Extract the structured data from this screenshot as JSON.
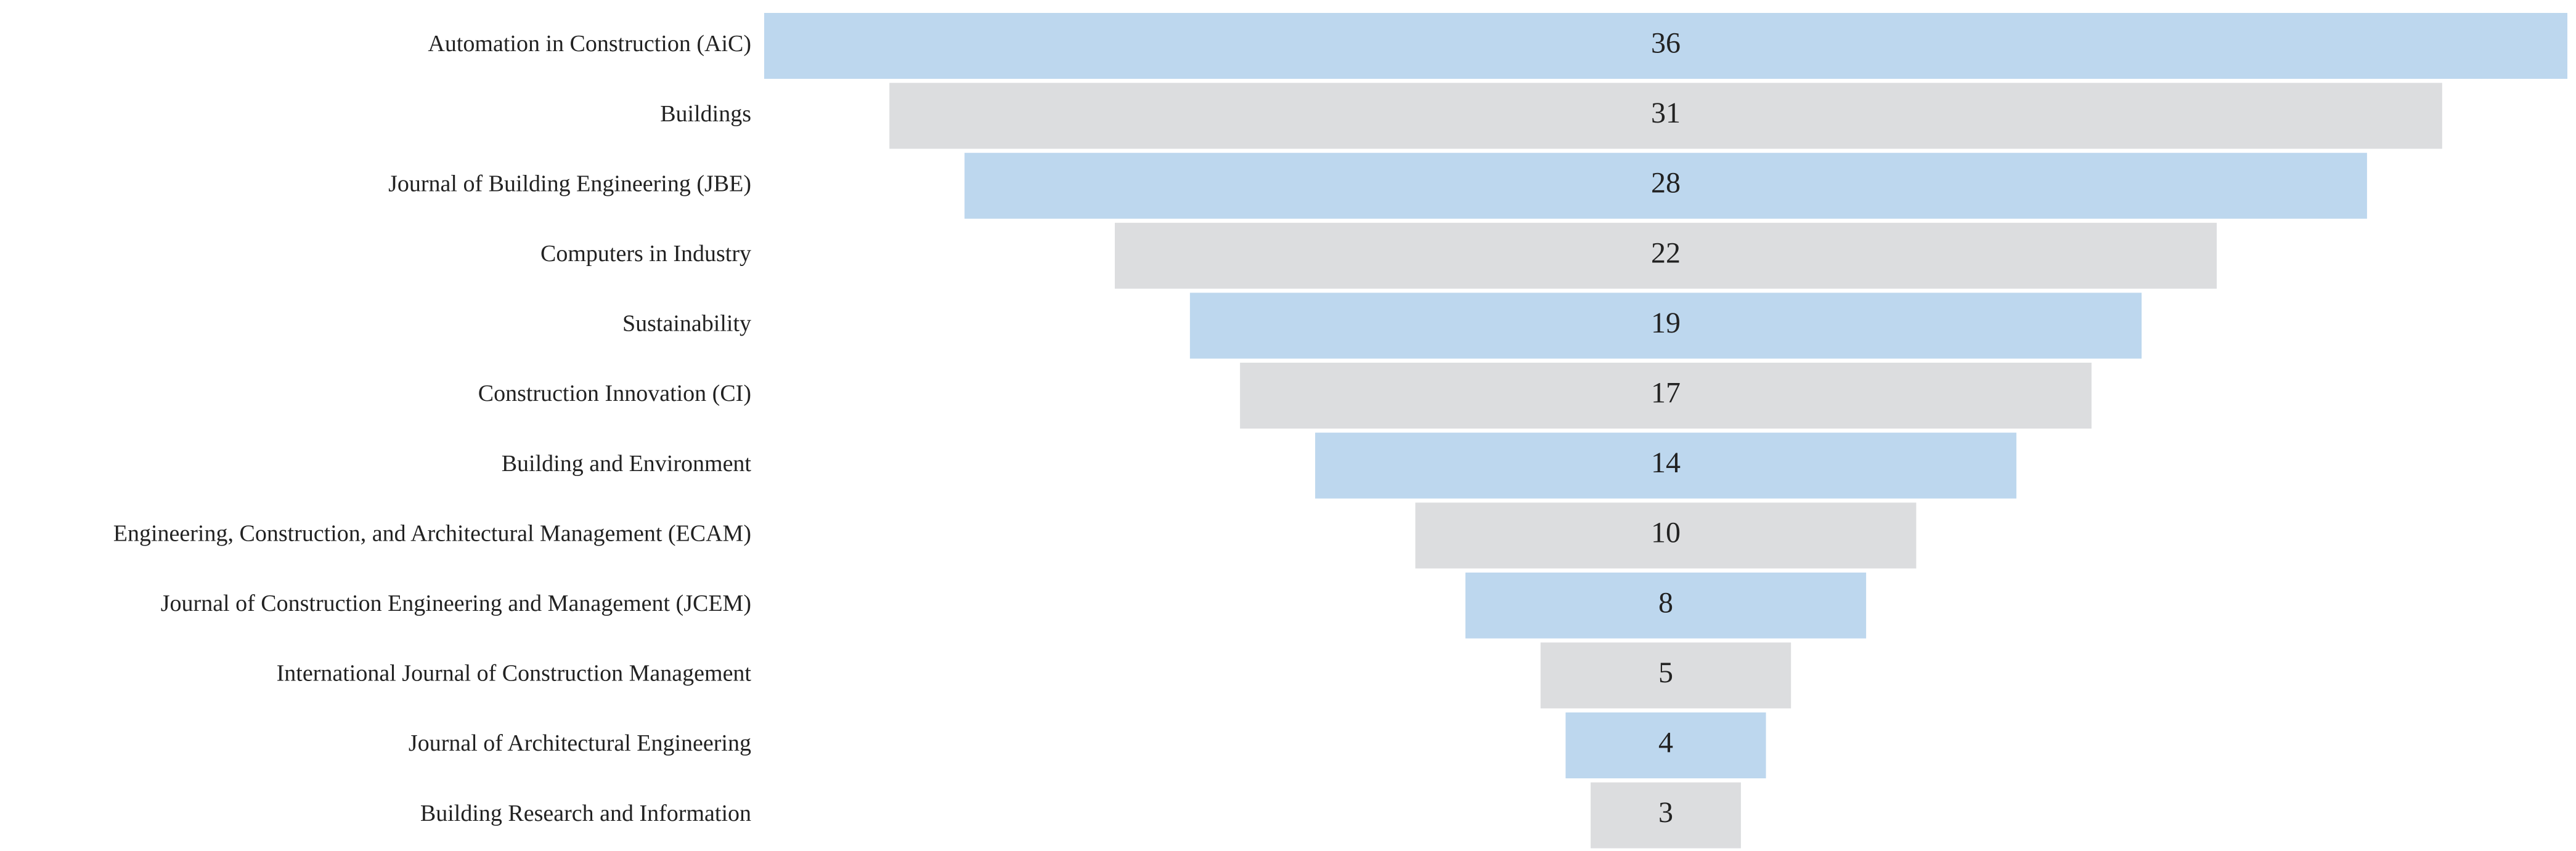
{
  "chart_data": {
    "type": "funnel",
    "categories": [
      "Automation in Construction (AiC)",
      "Buildings",
      "Journal of Building Engineering (JBE)",
      "Computers in Industry",
      "Sustainability",
      "Construction Innovation (CI)",
      "Building and Environment",
      "Engineering, Construction, and Architectural Management (ECAM)",
      "Journal of Construction Engineering and Management (JCEM)",
      "International Journal of Construction Management",
      "Journal of Architectural Engineering",
      "Building Research and Information"
    ],
    "values": [
      36,
      31,
      28,
      22,
      19,
      17,
      14,
      10,
      8,
      5,
      4,
      3
    ],
    "colors": [
      "#bdd7ee",
      "#dcdddf",
      "#bdd7ee",
      "#dcdddf",
      "#bdd7ee",
      "#dcdddf",
      "#bdd7ee",
      "#dcdddf",
      "#bdd7ee",
      "#dcdddf",
      "#bdd7ee",
      "#dcdddf"
    ]
  }
}
